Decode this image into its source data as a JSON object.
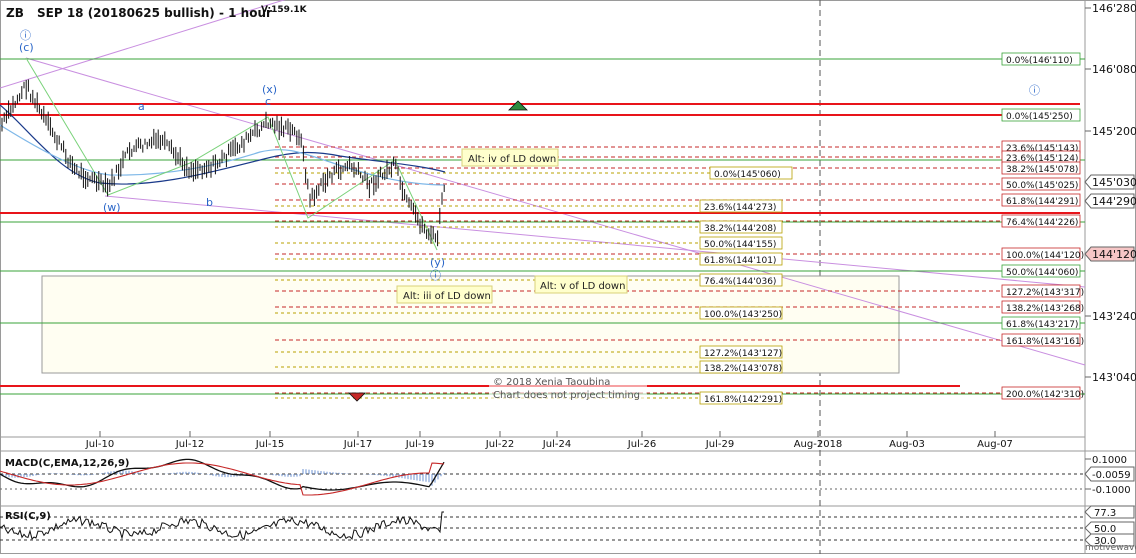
{
  "header": {
    "symbol": "ZB",
    "title": "SEP 18 (20180625 bullish) - 1 hour",
    "volume": "V:159.1K"
  },
  "watermark": [
    "© 2018 Xenia Taoubina",
    "Chart does not project timing"
  ],
  "brand": "motivewave",
  "chart_data": [
    {
      "type": "candlestick",
      "title": "ZB SEP 18 (20180625 bullish) - 1 hour",
      "x_ticks": [
        "Jul-10",
        "Jul-12",
        "Jul-15",
        "Jul-17",
        "Jul-19",
        "Jul-22",
        "Jul-24",
        "Jul-26",
        "Jul-29",
        "Aug-2018",
        "Aug-03",
        "Aug-07"
      ],
      "y_ticks": [
        "146'280",
        "146'080",
        "145'200",
        "143'240",
        "143'040"
      ],
      "price_tags": [
        {
          "label": "145'030",
          "value": "145'030"
        },
        {
          "label": "144'290",
          "value": "144'290"
        },
        {
          "label": "144'120",
          "value": "144'120"
        }
      ],
      "wave_labels": [
        "ⓘ",
        "(c)",
        "a",
        "(x)",
        "c",
        "(w)",
        "b",
        "(y)",
        "ⓘ",
        "ⓘ"
      ],
      "annotations": [
        "Alt: iv of LD down",
        "Alt: v of LD down",
        "Alt: iii of LD down"
      ],
      "fib_right": [
        "0.0%(146'110)",
        "0.0%(145'250)",
        "23.6%(145'143)",
        "23.6%(145'124)",
        "38.2%(145'078)",
        "50.0%(145'025)",
        "61.8%(144'291)",
        "76.4%(144'226)",
        "100.0%(144'120)",
        "50.0%(144'060)",
        "127.2%(143'317)",
        "138.2%(143'268)",
        "61.8%(143'217)",
        "161.8%(143'161)",
        "200.0%(142'310)"
      ],
      "fib_mid": [
        "0.0%(145'060)",
        "23.6%(144'273)",
        "38.2%(144'208)",
        "50.0%(144'155)",
        "61.8%(144'101)",
        "76.4%(144'036)",
        "100.0%(143'250)",
        "127.2%(143'127)",
        "138.2%(143'078)",
        "161.8%(142'291)"
      ]
    },
    {
      "type": "line",
      "title": "MACD(C,EMA,12,26,9)",
      "y_ticks": [
        "0.1000",
        "-0.0059",
        "-0.1000"
      ]
    },
    {
      "type": "line",
      "title": "RSI(C,9)",
      "y_ticks": [
        "77.3",
        "50.0",
        "30.0"
      ]
    }
  ],
  "colors": {
    "red_line": "#e8141a",
    "green_line": "#39a339",
    "red_dash": "#c62828",
    "gold_dash": "#b8a000",
    "purple_line": "#c98fe0",
    "wave_label": "#2a66c8",
    "fib_box_bg": "#fffef2"
  }
}
